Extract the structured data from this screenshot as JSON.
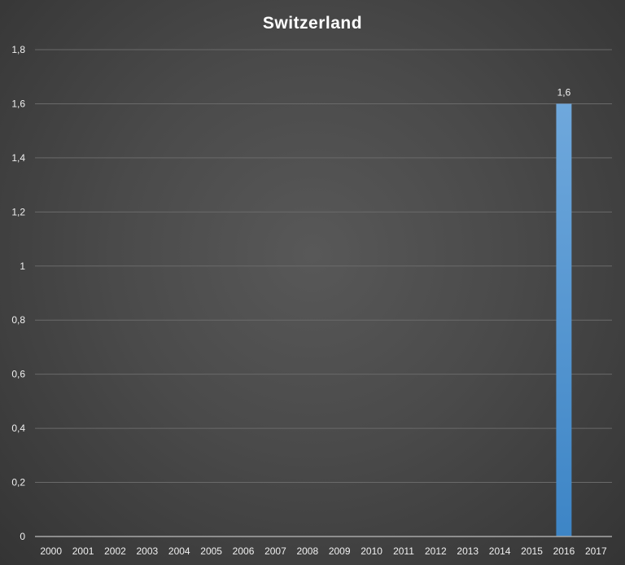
{
  "chart_data": {
    "type": "bar",
    "title": "Switzerland",
    "xlabel": "",
    "ylabel": "",
    "categories": [
      "2000",
      "2001",
      "2002",
      "2003",
      "2004",
      "2005",
      "2006",
      "2007",
      "2008",
      "2009",
      "2010",
      "2011",
      "2012",
      "2013",
      "2014",
      "2015",
      "2016",
      "2017"
    ],
    "values": [
      0,
      0,
      0,
      0,
      0,
      0,
      0,
      0,
      0,
      0,
      0,
      0,
      0,
      0,
      0,
      0,
      1.6,
      0
    ],
    "data_labels": {
      "2016": "1,6"
    },
    "ylim": [
      0,
      1.8
    ],
    "yticks": [
      0,
      0.2,
      0.4,
      0.6,
      0.8,
      1,
      1.2,
      1.4,
      1.6,
      1.8
    ],
    "ytick_labels": [
      "0",
      "0,2",
      "0,4",
      "0,6",
      "0,8",
      "1",
      "1,2",
      "1,4",
      "1,6",
      "1,8"
    ],
    "grid": true,
    "legend": "none",
    "colors": {
      "bar_top": "#6fa8dc",
      "bar_bottom": "#3d85c6",
      "gridline": "#6a6a6a",
      "axis": "#a8a8a8",
      "text": "#f0f0f0"
    }
  }
}
